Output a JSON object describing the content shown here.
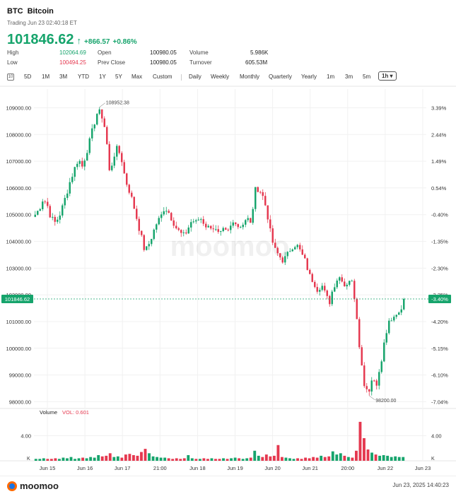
{
  "header": {
    "symbol": "BTC",
    "name": "Bitcoin",
    "trading_time": "Trading Jun 23 02:40:18 ET",
    "price": "101846.62",
    "change": "+866.57",
    "change_pct": "+0.86%"
  },
  "stats": {
    "high_label": "High",
    "high": "102064.69",
    "low_label": "Low",
    "low": "100494.25",
    "open_label": "Open",
    "open": "100980.05",
    "prev_close_label": "Prev Close",
    "prev_close": "100980.05",
    "volume_label": "Volume",
    "volume": "5.986K",
    "turnover_label": "Turnover",
    "turnover": "605.53M"
  },
  "toolbar": {
    "icon": "calendar-icon",
    "ranges": [
      "5D",
      "1M",
      "3M",
      "YTD",
      "1Y",
      "5Y",
      "Max",
      "Custom"
    ],
    "periods": [
      "Daily",
      "Weekly",
      "Monthly",
      "Quarterly",
      "Yearly",
      "1m",
      "3m",
      "5m"
    ],
    "selected": "1h ▾"
  },
  "colors": {
    "up": "#16a46c",
    "down": "#e5384f"
  },
  "chart_data": {
    "type": "candlestick",
    "interval": "1h",
    "y_left_ticks": [
      "109000.00",
      "108000.00",
      "107000.00",
      "106000.00",
      "105000.00",
      "104000.00",
      "103000.00",
      "102000.00",
      "101000.00",
      "100000.00",
      "99000.00",
      "98000.00"
    ],
    "y_right_ticks": [
      "3.39%",
      "2.44%",
      "1.49%",
      "0.54%",
      "-0.40%",
      "-1.35%",
      "-2.30%",
      "-3.25%",
      "-4.20%",
      "-5.15%",
      "-6.10%",
      "-7.04%"
    ],
    "x_ticks": [
      "Jun 15",
      "Jun 16",
      "Jun 17",
      "21:00",
      "Jun 18",
      "Jun 19",
      "Jun 20",
      "Jun 21",
      "20:00",
      "Jun 22",
      "Jun 23"
    ],
    "ylim": [
      97800,
      109700
    ],
    "current_price_label": "101846.62",
    "current_pct_label": "-3.40%",
    "max_annotation": "108952.38",
    "min_annotation": "98200.00",
    "close_path": [
      105000,
      105200,
      105600,
      105400,
      104900,
      104700,
      104900,
      105300,
      105800,
      106300,
      106700,
      107100,
      106800,
      107300,
      107800,
      108400,
      108900,
      108700,
      108100,
      106500,
      107200,
      107500,
      107100,
      106300,
      105900,
      105400,
      104800,
      104200,
      103600,
      103900,
      104300,
      104700,
      104900,
      105300,
      105100,
      104800,
      104500,
      104300,
      104200,
      104500,
      104800,
      104700,
      104900,
      104700,
      104500,
      104600,
      104400,
      104200,
      104400,
      104300,
      104600,
      104800,
      104500,
      104700,
      104900,
      104600,
      105900,
      106000,
      105700,
      105200,
      104300,
      103700,
      103500,
      103300,
      103400,
      103700,
      103900,
      103800,
      103500,
      103200,
      102700,
      102500,
      102200,
      102400,
      102000,
      101700,
      102300,
      102600,
      102700,
      102300,
      102600,
      102400,
      101200,
      99600,
      98600,
      98400,
      98900,
      98700,
      99200,
      100200,
      100900,
      101000,
      101300,
      101400,
      101846.62
    ],
    "volume": {
      "label": "Volume",
      "indicator": "VOL: 0.601",
      "y_ticks": [
        "4.00"
      ],
      "unit_label": "K",
      "ylim": [
        0,
        7.2
      ],
      "values": [
        0.3,
        0.3,
        0.4,
        0.3,
        0.3,
        0.4,
        0.3,
        0.5,
        0.4,
        0.6,
        0.3,
        0.4,
        0.5,
        0.4,
        0.6,
        0.5,
        0.9,
        0.7,
        0.8,
        1.2,
        0.6,
        0.7,
        0.5,
        1.0,
        1.1,
        0.9,
        0.8,
        1.4,
        1.9,
        1.2,
        0.7,
        0.6,
        0.5,
        0.5,
        0.4,
        0.3,
        0.4,
        0.3,
        0.4,
        0.9,
        0.4,
        0.3,
        0.3,
        0.4,
        0.3,
        0.4,
        0.3,
        0.3,
        0.4,
        0.3,
        0.4,
        0.5,
        0.4,
        0.3,
        0.4,
        0.5,
        1.6,
        0.8,
        0.6,
        1.0,
        0.7,
        0.8,
        2.5,
        0.6,
        0.5,
        0.4,
        0.3,
        0.4,
        0.3,
        0.5,
        0.4,
        0.6,
        0.5,
        0.8,
        0.6,
        0.7,
        1.5,
        1.0,
        1.2,
        0.8,
        0.6,
        0.5,
        1.6,
        6.2,
        3.6,
        1.8,
        1.3,
        1.0,
        0.8,
        0.9,
        0.8,
        0.6,
        0.7,
        0.6,
        0.6
      ]
    }
  },
  "watermark": "moomoo",
  "footer": {
    "brand": "moomoo",
    "timestamp": "Jun 23, 2025 14:40:23"
  }
}
